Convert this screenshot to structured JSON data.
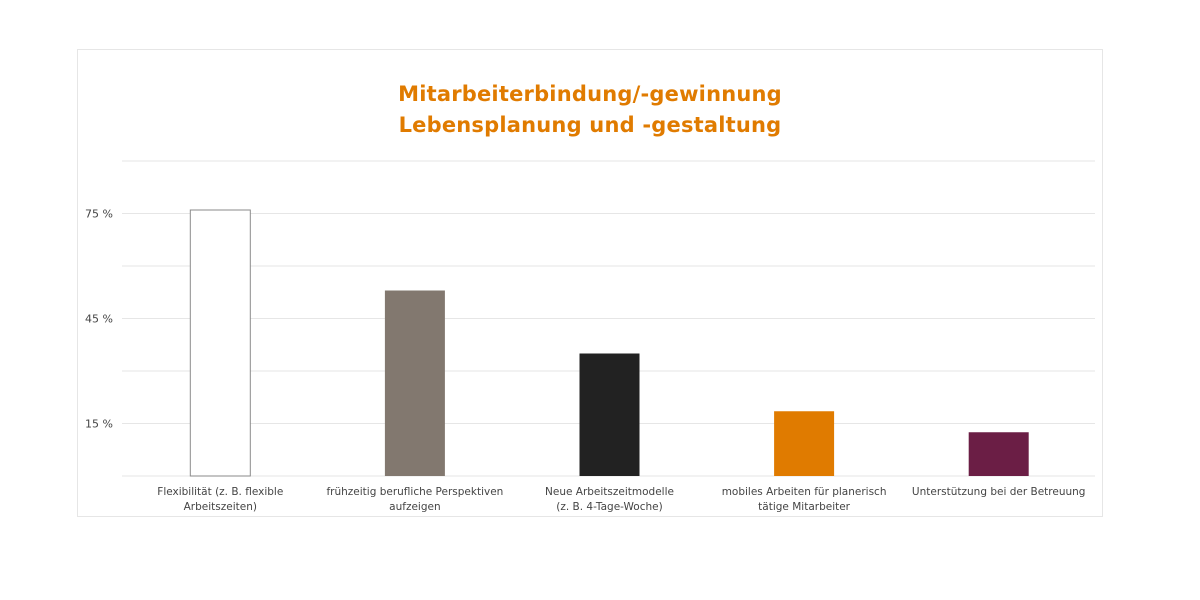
{
  "chart_data": {
    "type": "bar",
    "title": [
      "Mitarbeiterbindung/-gewinnung",
      "Lebensplanung und -gestaltung"
    ],
    "categories": [
      [
        "Flexibilität (z. B. flexible",
        "Arbeitszeiten)"
      ],
      [
        "frühzeitig berufliche Perspektiven",
        "aufzeigen"
      ],
      [
        "Neue Arbeitszeitmodelle",
        "(z. B. 4-Tage-Woche)"
      ],
      [
        "mobiles Arbeiten für planerisch",
        "tätige Mitarbeiter"
      ],
      [
        "Unterstützung bei der Betreuung"
      ]
    ],
    "values": [
      76,
      53,
      35,
      18.5,
      12.5
    ],
    "colors": [
      "#ffffff",
      "#82786f",
      "#222222",
      "#e07b00",
      "#6b1e45"
    ],
    "bar_stroke": "#8a8a8a",
    "yticks": [
      15,
      45,
      75
    ],
    "ytick_labels": [
      "15 %",
      "45 %",
      "75 %"
    ],
    "ylim": [
      0,
      90
    ],
    "grid": true,
    "grid_step": 15,
    "xlabel": "",
    "ylabel": ""
  },
  "colors": {
    "title": "#e07b00",
    "grid": "#e6e6e6",
    "text": "#444444"
  }
}
